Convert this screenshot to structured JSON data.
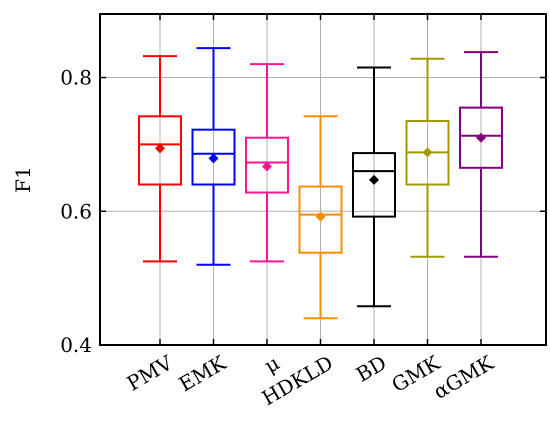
{
  "chart_data": {
    "type": "box",
    "title": "",
    "xlabel": "",
    "ylabel": "F1",
    "ylim": [
      0.4,
      0.895
    ],
    "yticks": [
      0.4,
      0.6,
      0.8
    ],
    "ytick_labels": [
      "0.4",
      "0.6",
      "0.8"
    ],
    "grid": true,
    "categories": [
      "PMV",
      "EMK",
      "μ",
      "HDKLD",
      "BD",
      "GMK",
      "αGMK"
    ],
    "series": [
      {
        "label": "PMV",
        "color": "#ff0000",
        "whisker_low": 0.525,
        "q1": 0.64,
        "median": 0.7,
        "q3": 0.742,
        "whisker_high": 0.832,
        "mean": 0.694
      },
      {
        "label": "EMK",
        "color": "#0000ff",
        "whisker_low": 0.52,
        "q1": 0.64,
        "median": 0.686,
        "q3": 0.722,
        "whisker_high": 0.844,
        "mean": 0.679
      },
      {
        "label": "μ",
        "color": "#ff1493",
        "whisker_low": 0.525,
        "q1": 0.628,
        "median": 0.673,
        "q3": 0.71,
        "whisker_high": 0.82,
        "mean": 0.667
      },
      {
        "label": "HDKLD",
        "color": "#ff8c00",
        "whisker_low": 0.44,
        "q1": 0.538,
        "median": 0.595,
        "q3": 0.637,
        "whisker_high": 0.742,
        "mean": 0.592
      },
      {
        "label": "BD",
        "color": "#000000",
        "whisker_low": 0.458,
        "q1": 0.592,
        "median": 0.66,
        "q3": 0.687,
        "whisker_high": 0.815,
        "mean": 0.647
      },
      {
        "label": "GMK",
        "color": "#a39a00",
        "whisker_low": 0.532,
        "q1": 0.64,
        "median": 0.688,
        "q3": 0.735,
        "whisker_high": 0.828,
        "mean": 0.688
      },
      {
        "label": "αGMK",
        "color": "#800080",
        "whisker_low": 0.532,
        "q1": 0.665,
        "median": 0.713,
        "q3": 0.755,
        "whisker_high": 0.838,
        "mean": 0.71
      }
    ]
  }
}
